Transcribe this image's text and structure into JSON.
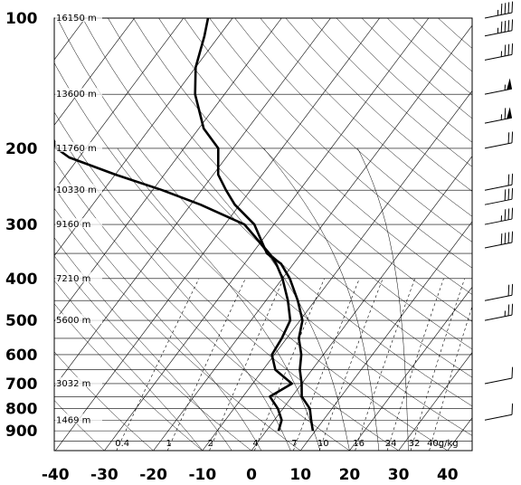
{
  "chart_data": {
    "type": "line",
    "chart_kind": "skew-t log-p sounding",
    "title": "",
    "xlabel": "",
    "ylabel": "",
    "y_scale": "log",
    "y_inverted": true,
    "xlim_at_surface": [
      -40,
      45
    ],
    "ylim": [
      100,
      1000
    ],
    "grid": true,
    "pressure_ticks": [
      100,
      200,
      300,
      400,
      500,
      600,
      700,
      800,
      900
    ],
    "temperature_ticks": [
      -40,
      -30,
      -20,
      -10,
      0,
      10,
      20,
      30,
      40
    ],
    "height_labels": [
      {
        "p": 100,
        "label": "16150 m"
      },
      {
        "p": 150,
        "label": "13600 m"
      },
      {
        "p": 200,
        "label": "11760 m"
      },
      {
        "p": 250,
        "label": "10330 m"
      },
      {
        "p": 300,
        "label": "9160 m"
      },
      {
        "p": 400,
        "label": "7210 m"
      },
      {
        "p": 500,
        "label": "5600 m"
      },
      {
        "p": 700,
        "label": "3032 m"
      },
      {
        "p": 850,
        "label": "1469 m"
      }
    ],
    "mixing_ratio_labels": [
      "0.4",
      "1",
      "2",
      "4",
      "7",
      "10",
      "16",
      "24",
      "32",
      "40g/kg"
    ],
    "series": [
      {
        "role": "temperature",
        "color": "#000000",
        "points": [
          [
            900,
            9.5
          ],
          [
            850,
            7.5
          ],
          [
            800,
            5.5
          ],
          [
            750,
            2.0
          ],
          [
            700,
            0.0
          ],
          [
            650,
            -2.5
          ],
          [
            600,
            -4.5
          ],
          [
            550,
            -7.5
          ],
          [
            500,
            -9.5
          ],
          [
            450,
            -13.5
          ],
          [
            400,
            -18.5
          ],
          [
            370,
            -22.5
          ],
          [
            350,
            -27.0
          ],
          [
            300,
            -34.0
          ],
          [
            270,
            -41.0
          ],
          [
            250,
            -45.0
          ],
          [
            230,
            -49.0
          ],
          [
            200,
            -53.0
          ],
          [
            180,
            -59.0
          ],
          [
            150,
            -66.0
          ],
          [
            130,
            -70.0
          ],
          [
            110,
            -73.0
          ],
          [
            100,
            -75.0
          ]
        ]
      },
      {
        "role": "dewpoint",
        "color": "#000000",
        "points": [
          [
            900,
            2.5
          ],
          [
            850,
            1.5
          ],
          [
            800,
            -1.0
          ],
          [
            750,
            -4.5
          ],
          [
            700,
            -2.0
          ],
          [
            650,
            -7.5
          ],
          [
            600,
            -10.5
          ],
          [
            550,
            -11.0
          ],
          [
            500,
            -12.0
          ],
          [
            450,
            -15.5
          ],
          [
            400,
            -20.0
          ],
          [
            370,
            -23.5
          ],
          [
            350,
            -26.5
          ],
          [
            300,
            -36.0
          ],
          [
            270,
            -48.0
          ],
          [
            250,
            -58.0
          ],
          [
            230,
            -70.0
          ],
          [
            210,
            -82.0
          ],
          [
            200,
            -86.0
          ],
          [
            150,
            -98.0
          ],
          [
            100,
            -112.0
          ]
        ]
      }
    ],
    "wind_barbs": [
      {
        "p": 100,
        "speed_kt": 45
      },
      {
        "p": 110,
        "speed_kt": 45
      },
      {
        "p": 125,
        "speed_kt": 35
      },
      {
        "p": 150,
        "speed_kt": 55
      },
      {
        "p": 175,
        "speed_kt": 65
      },
      {
        "p": 200,
        "speed_kt": 20
      },
      {
        "p": 250,
        "speed_kt": 20
      },
      {
        "p": 270,
        "speed_kt": 30
      },
      {
        "p": 300,
        "speed_kt": 35
      },
      {
        "p": 340,
        "speed_kt": 40
      },
      {
        "p": 450,
        "speed_kt": 20
      },
      {
        "p": 500,
        "speed_kt": 25
      },
      {
        "p": 700,
        "speed_kt": 10
      },
      {
        "p": 850,
        "speed_kt": 10
      }
    ]
  }
}
